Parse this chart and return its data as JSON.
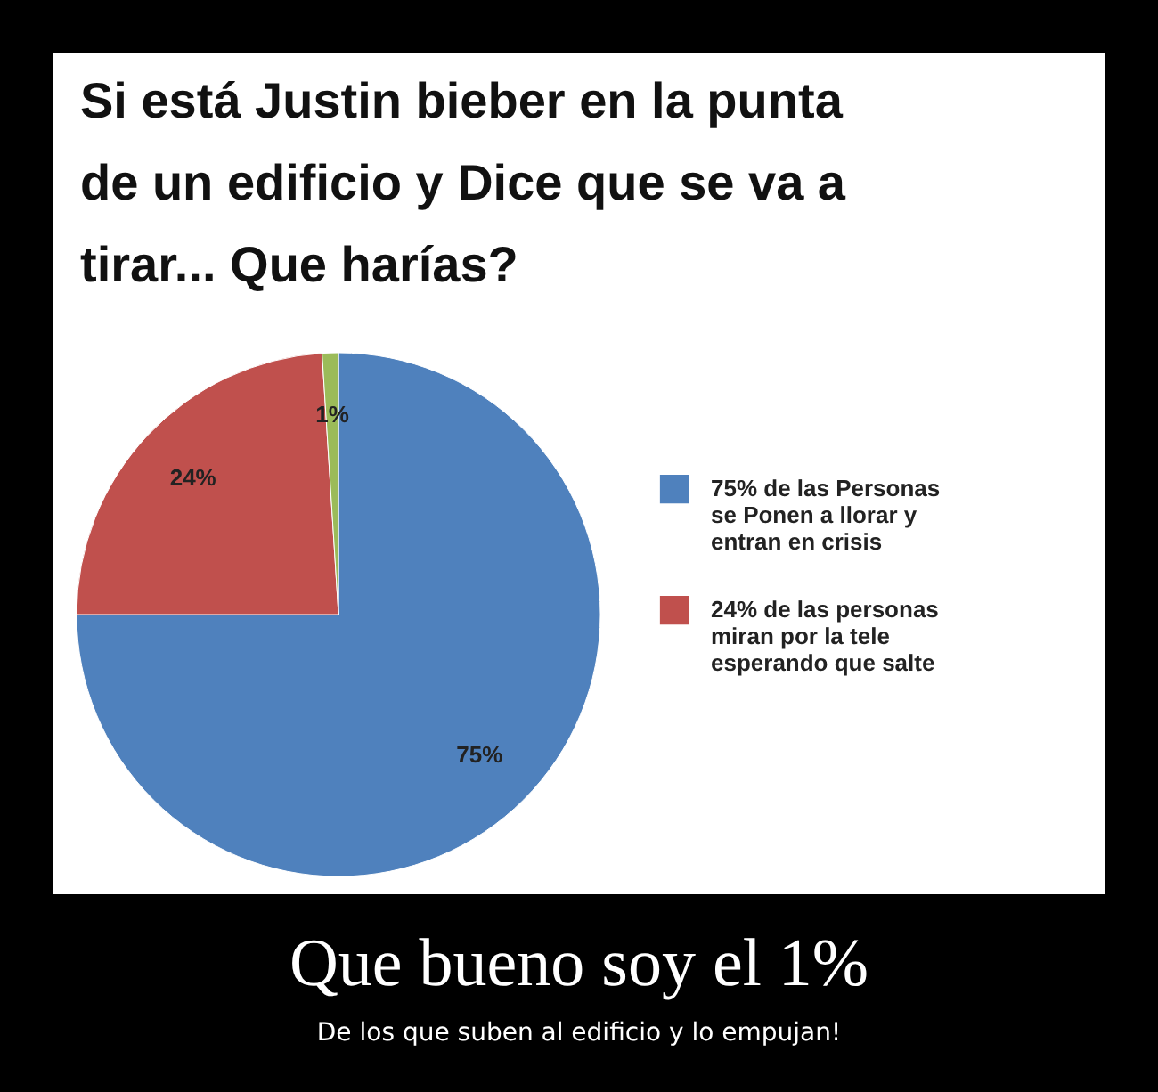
{
  "chart_data": {
    "type": "pie",
    "title": "Si está Justin bieber en la punta de un edificio y Dice que se va a tirar... Que harías?",
    "categories": [
      "75% de las Personas se Ponen a llorar y entran en crisis",
      "24% de las personas miran por la tele esperando que salte",
      null
    ],
    "values": [
      75,
      24,
      1
    ],
    "colors": [
      "#4f81bd",
      "#c0504d",
      "#9bbb59"
    ],
    "value_labels": [
      "75%",
      "24%",
      "1%"
    ],
    "legend": "right",
    "annotations": [
      "Que bueno soy el 1%",
      "De los que suben al edificio y lo empujan!"
    ]
  }
}
